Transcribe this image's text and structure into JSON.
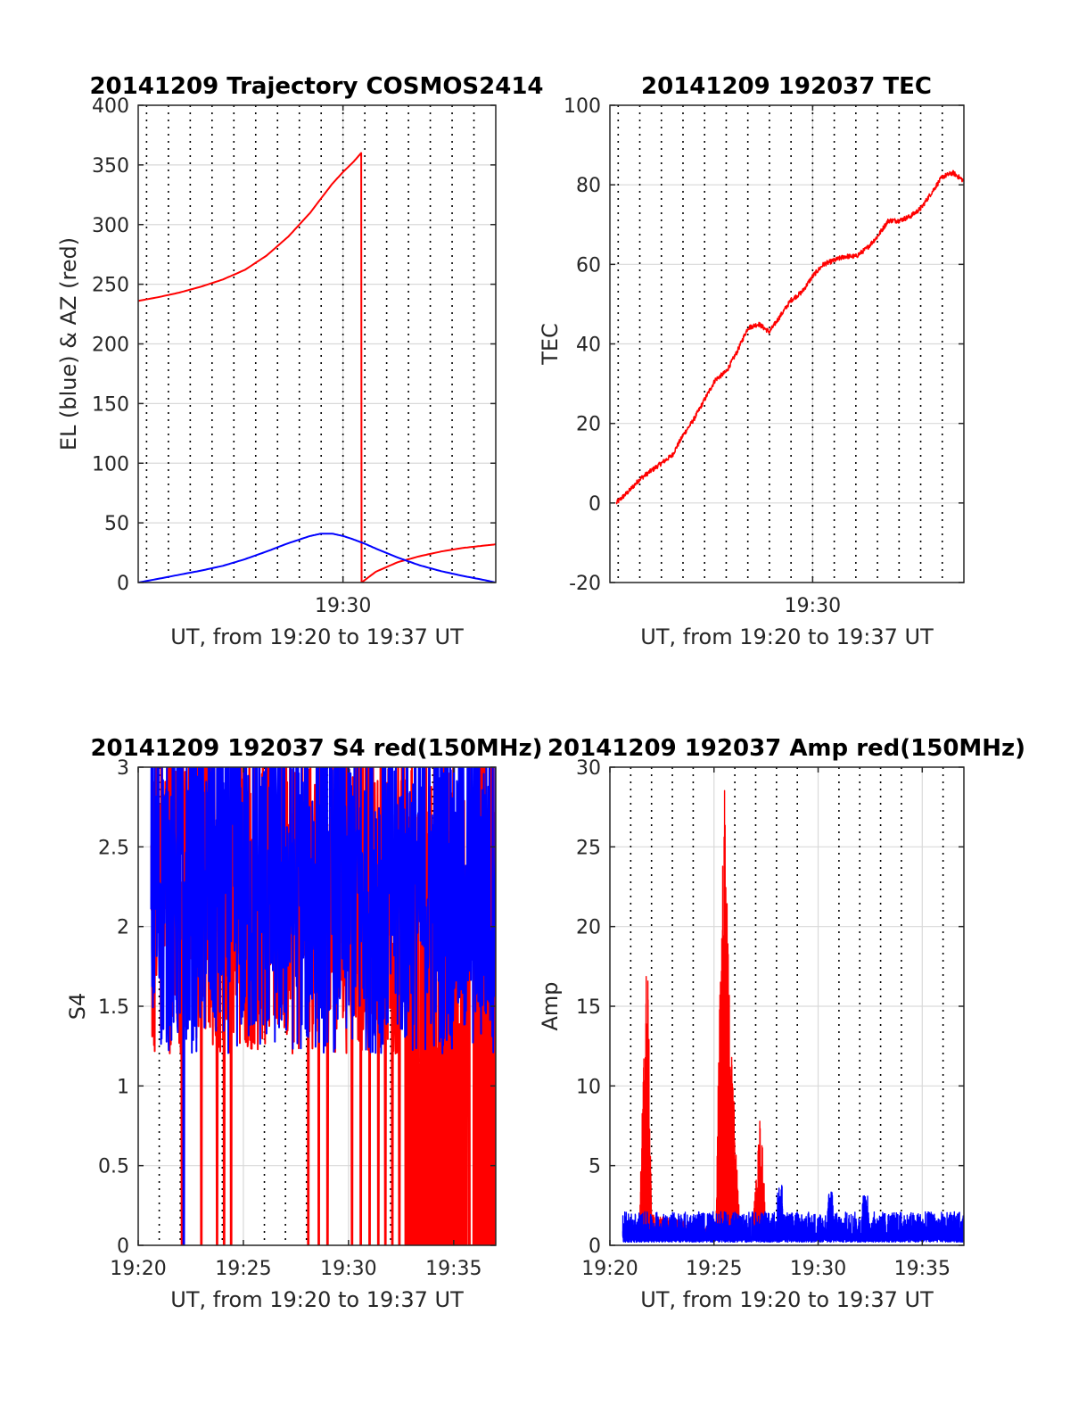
{
  "figure": {
    "background": "#ffffff",
    "grid_color": "#d9d9d9",
    "dotted_line_color": "#000000",
    "axis_color": "#262626"
  },
  "chart_data": [
    {
      "id": "trajectory",
      "type": "line",
      "title": "20141209 Trajectory COSMOS2414",
      "xlabel": "UT, from 19:20 to 19:37 UT",
      "ylabel": "EL (blue) & AZ (red)",
      "xlim": [
        "19:20:37",
        "19:37:00"
      ],
      "ylim": [
        0,
        400
      ],
      "yticks": [
        0,
        50,
        100,
        150,
        200,
        250,
        300,
        350,
        400
      ],
      "xticks": [
        {
          "x": "19:30",
          "label": "19:30"
        }
      ],
      "grid": true,
      "dotted_vertical_lines": [
        "19:21:00",
        "19:22:00",
        "19:23:00",
        "19:24:00",
        "19:25:00",
        "19:26:00",
        "19:27:00",
        "19:28:00",
        "19:29:00",
        "19:30:00",
        "19:31:00",
        "19:32:00",
        "19:33:00",
        "19:34:00",
        "19:35:00",
        "19:36:00"
      ],
      "series": [
        {
          "color": "#ff0000",
          "x": [
            "19:20:37",
            "19:21:30",
            "19:22:30",
            "19:23:30",
            "19:24:30",
            "19:25:30",
            "19:26:30",
            "19:27:30",
            "19:28:30",
            "19:29:00",
            "19:29:30",
            "19:30:00",
            "19:30:30",
            "19:30:50",
            "19:30:51",
            "19:31:30",
            "19:32:30",
            "19:33:30",
            "19:34:30",
            "19:35:30",
            "19:36:30",
            "19:37:00"
          ],
          "y": [
            236,
            239,
            243,
            248,
            254,
            262,
            274,
            290,
            310,
            322,
            334,
            344,
            353,
            360,
            0,
            9,
            17,
            22,
            26,
            29,
            31,
            32
          ]
        },
        {
          "color": "#0000ff",
          "x": [
            "19:20:37",
            "19:21:30",
            "19:22:30",
            "19:23:30",
            "19:24:30",
            "19:25:30",
            "19:26:30",
            "19:27:30",
            "19:28:30",
            "19:29:00",
            "19:29:30",
            "19:30:00",
            "19:30:30",
            "19:31:00",
            "19:31:30",
            "19:32:30",
            "19:33:30",
            "19:34:30",
            "19:35:30",
            "19:36:30",
            "19:37:00"
          ],
          "y": [
            0,
            3,
            6.5,
            10,
            14,
            19.5,
            26,
            33,
            39,
            41,
            41,
            39,
            36,
            32.5,
            28.5,
            21,
            14.5,
            9.5,
            5.5,
            2,
            0
          ]
        }
      ]
    },
    {
      "id": "tec",
      "type": "line",
      "title": "20141209 192037 TEC",
      "xlabel": "UT, from 19:20 to 19:37 UT",
      "ylabel": "TEC",
      "xlim": [
        "19:20:37",
        "19:37:00"
      ],
      "ylim": [
        -20,
        100
      ],
      "yticks": [
        -20,
        0,
        20,
        40,
        60,
        80,
        100
      ],
      "xticks": [
        {
          "x": "19:30",
          "label": "19:30"
        }
      ],
      "grid": true,
      "dotted_vertical_lines": [
        "19:21:00",
        "19:22:00",
        "19:23:00",
        "19:24:00",
        "19:25:00",
        "19:26:00",
        "19:27:00",
        "19:28:00",
        "19:29:00",
        "19:30:00",
        "19:31:00",
        "19:32:00",
        "19:33:00",
        "19:34:00",
        "19:35:00",
        "19:36:00"
      ],
      "series": [
        {
          "color": "#ff0000",
          "x": [
            "19:20:55",
            "19:21:30",
            "19:22:00",
            "19:22:30",
            "19:23:00",
            "19:23:30",
            "19:24:00",
            "19:24:30",
            "19:25:00",
            "19:25:30",
            "19:26:00",
            "19:26:30",
            "19:27:00",
            "19:27:30",
            "19:28:00",
            "19:28:30",
            "19:29:00",
            "19:29:30",
            "19:30:00",
            "19:30:30",
            "19:31:00",
            "19:31:30",
            "19:32:00",
            "19:32:30",
            "19:33:00",
            "19:33:30",
            "19:34:00",
            "19:34:30",
            "19:35:00",
            "19:35:30",
            "19:36:00",
            "19:36:30",
            "19:37:00"
          ],
          "y": [
            0,
            3,
            6,
            8,
            10,
            12,
            17,
            21,
            26,
            31,
            33,
            38,
            44,
            45,
            43,
            47,
            51,
            53,
            57,
            60,
            61,
            62,
            62,
            64,
            67,
            71,
            71,
            72,
            74,
            78,
            82,
            83,
            81
          ]
        }
      ]
    },
    {
      "id": "s4",
      "type": "line",
      "title": "20141209 192037 S4 red(150MHz)",
      "xlabel": "UT, from 19:20 to 19:37 UT",
      "ylabel": "S4",
      "xlim": [
        "19:20:00",
        "19:37:00"
      ],
      "ylim": [
        0,
        3
      ],
      "yticks": [
        0,
        0.5,
        1,
        1.5,
        2,
        2.5,
        3
      ],
      "xticks": [
        {
          "x": "19:20",
          "label": "19:20"
        },
        {
          "x": "19:25",
          "label": "19:25"
        },
        {
          "x": "19:30",
          "label": "19:30"
        },
        {
          "x": "19:35",
          "label": "19:35"
        }
      ],
      "grid": true,
      "dotted_vertical_lines": [
        "19:21:00",
        "19:22:00",
        "19:23:00",
        "19:24:00",
        "19:26:00",
        "19:27:00",
        "19:28:00",
        "19:29:00",
        "19:31:00",
        "19:32:00",
        "19:33:00",
        "19:34:00",
        "19:36:00"
      ],
      "series": [
        {
          "color": "#ff0000",
          "x_range": [
            "19:20:37",
            "19:37:00"
          ],
          "typical_range": [
            1.2,
            3
          ],
          "dropouts_to_zero": [
            "19:22:05",
            "19:23:00",
            "19:23:45",
            "19:24:05",
            "19:24:25",
            "19:28:05",
            "19:28:35",
            "19:29:00",
            "19:30:10",
            "19:30:35",
            "19:31:00",
            "19:31:25",
            "19:31:45",
            "19:32:05",
            "19:32:25"
          ],
          "dense_zero_fill_from": "19:32:40"
        },
        {
          "color": "#0000ff",
          "x_range": [
            "19:20:37",
            "19:37:00"
          ],
          "typical_range": [
            1.2,
            3
          ],
          "dropouts_to_zero": [
            "19:22:10"
          ]
        }
      ]
    },
    {
      "id": "amp",
      "type": "line",
      "title": "20141209 192037 Amp red(150MHz)",
      "xlabel": "UT, from 19:20 to 19:37 UT",
      "ylabel": "Amp",
      "xlim": [
        "19:20:00",
        "19:37:00"
      ],
      "ylim": [
        0,
        30
      ],
      "yticks": [
        0,
        5,
        10,
        15,
        20,
        25,
        30
      ],
      "xticks": [
        {
          "x": "19:20",
          "label": "19:20"
        },
        {
          "x": "19:25",
          "label": "19:25"
        },
        {
          "x": "19:30",
          "label": "19:30"
        },
        {
          "x": "19:35",
          "label": "19:35"
        }
      ],
      "grid": true,
      "dotted_vertical_lines": [
        "19:21:00",
        "19:22:00",
        "19:23:00",
        "19:24:00",
        "19:26:00",
        "19:27:00",
        "19:28:00",
        "19:29:00",
        "19:31:00",
        "19:32:00",
        "19:33:00",
        "19:34:00",
        "19:36:00"
      ],
      "series": [
        {
          "color": "#ff0000",
          "x": [
            "19:21:25",
            "19:21:40",
            "19:21:48",
            "19:22:00",
            "19:25:05",
            "19:25:15",
            "19:25:30",
            "19:25:45",
            "19:26:00",
            "19:26:15",
            "19:26:50",
            "19:27:05",
            "19:27:15",
            "19:27:30"
          ],
          "y": [
            1,
            15,
            19.5,
            2,
            1,
            14,
            30,
            15,
            8,
            1,
            1,
            6,
            9,
            1
          ]
        },
        {
          "color": "#0000ff",
          "x_range": [
            "19:20:37",
            "19:37:00"
          ],
          "typical_range": [
            0,
            2
          ],
          "bumps": [
            {
              "x": "19:28:10",
              "y": 3.8
            },
            {
              "x": "19:30:35",
              "y": 3.5
            },
            {
              "x": "19:32:15",
              "y": 3.2
            }
          ]
        }
      ]
    }
  ]
}
